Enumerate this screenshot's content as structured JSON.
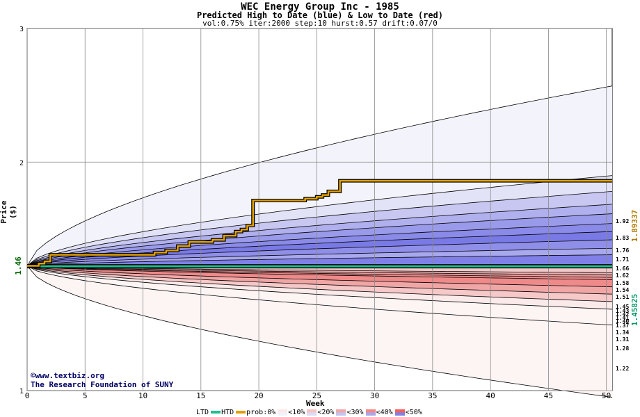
{
  "chart_data": {
    "type": "area",
    "title": "WEC Energy Group Inc - 1985",
    "subtitle": "Predicted High to Date (blue) &  Low to Date (red)",
    "params": "vol:0.75% iter:2000 step:10 hurst:0.57 drift:0.07/0",
    "xlabel": "Week",
    "ylabel": "Price ($)",
    "xlim": [
      0,
      50.5
    ],
    "ylim": [
      1,
      3
    ],
    "y_scale": "log",
    "x_ticks": [
      0,
      5,
      10,
      15,
      20,
      25,
      30,
      35,
      40,
      45,
      50
    ],
    "y_ticks": [
      1,
      2,
      3
    ],
    "grid": true,
    "start_price": 1.46,
    "start_label": "1.46",
    "high_right_labels": [
      "1.92",
      "1.83",
      "1.76",
      "1.71",
      "1.66",
      "1.62",
      "1.58",
      "1.54",
      "1.51",
      "1.45"
    ],
    "low_right_labels": [
      "1.43",
      "1.42",
      "1.41",
      "1.40",
      "1.37",
      "1.34",
      "1.31",
      "1.28",
      "1.22"
    ],
    "high_band_end_values": [
      2.52,
      1.92,
      1.83,
      1.76,
      1.71,
      1.66,
      1.62,
      1.58,
      1.54,
      1.51
    ],
    "low_band_end_values": [
      1.43,
      1.42,
      1.41,
      1.4,
      1.37,
      1.34,
      1.31,
      1.28,
      1.22,
      0.98
    ],
    "band_fills_high": [
      "#f3f3fb",
      "#e3e3f7",
      "#c7c7f1",
      "#b0b0ee",
      "#9a9aeb",
      "#8a8ae9",
      "#7a7ae6",
      "#8f8fe9",
      "#a8a8ee"
    ],
    "band_fills_low": [
      "#f0c8c8",
      "#eeb0b0",
      "#ec9a9a",
      "#f28888",
      "#ef8a8a",
      "#f1a6a6",
      "#f6c8c8",
      "#fbeaea",
      "#fdf4f4"
    ],
    "htd_path": {
      "x": [
        0,
        1,
        1.5,
        2,
        5,
        10,
        11,
        12,
        13,
        14,
        15,
        16,
        17,
        18,
        18.5,
        19,
        19.5,
        24,
        25,
        25.5,
        26,
        27,
        50.5
      ],
      "y": [
        1.46,
        1.47,
        1.48,
        1.51,
        1.51,
        1.51,
        1.52,
        1.53,
        1.55,
        1.57,
        1.57,
        1.58,
        1.6,
        1.62,
        1.63,
        1.65,
        1.78,
        1.79,
        1.8,
        1.81,
        1.83,
        1.89,
        1.89
      ]
    },
    "ltd_path": {
      "x": [
        0,
        50.5
      ],
      "y": [
        1.458,
        1.458
      ]
    },
    "right_value_high": "1.89337",
    "right_value_low": "1.45825",
    "colors": {
      "htd": "#e0a000",
      "ltd": "#20c090",
      "high_label": "#b07800",
      "low_label": "#009966"
    }
  },
  "credit": {
    "line1": "www.textbiz.org",
    "line2": "The Research Foundation of SUNY"
  },
  "legend": {
    "ltd": "LTD",
    "htd": "HTD",
    "prob": "prob:0%",
    "items": [
      "<10%",
      "<20%",
      "<30%",
      "<40%",
      "<50%"
    ],
    "colors_low": [
      "#fde8e8",
      "#f6c4c4",
      "#f0a8a8",
      "#f28888",
      "#f06060"
    ],
    "colors_high": [
      "#f2f2fc",
      "#dcdcf6",
      "#c4c4f2",
      "#a8a8ee",
      "#8080e8"
    ]
  }
}
